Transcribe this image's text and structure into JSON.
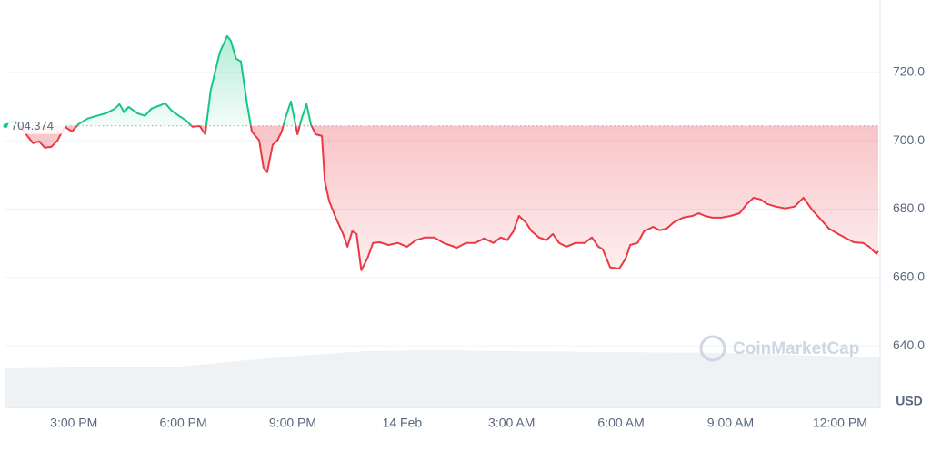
{
  "chart_data": {
    "type": "line",
    "y_label": "USD",
    "watermark": "CoinMarketCap",
    "baseline": 704.374,
    "up_color": "#16c784",
    "down_color": "#ea3943",
    "grid": true,
    "xlim": [
      13.1,
      37.1
    ],
    "ylim": [
      621.8,
      741.2
    ],
    "xticks": [
      {
        "value": 15,
        "label": "3:00 PM"
      },
      {
        "value": 18,
        "label": "6:00 PM"
      },
      {
        "value": 21,
        "label": "9:00 PM"
      },
      {
        "value": 24,
        "label": "14 Feb"
      },
      {
        "value": 27,
        "label": "3:00 AM"
      },
      {
        "value": 30,
        "label": "6:00 AM"
      },
      {
        "value": 33,
        "label": "9:00 AM"
      },
      {
        "value": 36,
        "label": "12:00 PM"
      }
    ],
    "yticks": [
      {
        "value": 640,
        "label": "640.0"
      },
      {
        "value": 660,
        "label": "660.0"
      },
      {
        "value": 680,
        "label": "680.0"
      },
      {
        "value": 700,
        "label": "700.0"
      },
      {
        "value": 720,
        "label": "720.0"
      }
    ],
    "x": [
      13.13,
      13.38,
      13.63,
      13.88,
      14.05,
      14.2,
      14.38,
      14.55,
      14.75,
      14.95,
      15.13,
      15.38,
      15.63,
      15.88,
      16.13,
      16.25,
      16.38,
      16.5,
      16.75,
      16.95,
      17.13,
      17.38,
      17.5,
      17.68,
      17.88,
      18.08,
      18.25,
      18.45,
      18.6,
      18.75,
      19,
      19.2,
      19.3,
      19.45,
      19.58,
      19.75,
      19.88,
      20.08,
      20.2,
      20.3,
      20.45,
      20.58,
      20.7,
      20.8,
      20.95,
      21.13,
      21.25,
      21.38,
      21.5,
      21.63,
      21.8,
      21.88,
      22,
      22.2,
      22.38,
      22.5,
      22.63,
      22.75,
      22.88,
      23.05,
      23.2,
      23.38,
      23.63,
      23.88,
      24.13,
      24.38,
      24.63,
      24.88,
      25.13,
      25.5,
      25.75,
      26,
      26.25,
      26.5,
      26.7,
      26.88,
      27.05,
      27.2,
      27.38,
      27.55,
      27.75,
      27.95,
      28.13,
      28.3,
      28.5,
      28.75,
      29,
      29.2,
      29.38,
      29.5,
      29.7,
      29.95,
      30.13,
      30.25,
      30.45,
      30.63,
      30.88,
      31.05,
      31.25,
      31.45,
      31.7,
      31.95,
      32.13,
      32.3,
      32.5,
      32.75,
      33,
      33.25,
      33.45,
      33.63,
      33.83,
      34,
      34.25,
      34.5,
      34.75,
      35,
      35.25,
      35.5,
      35.7,
      35.95,
      36.13,
      36.38,
      36.63,
      36.8,
      37,
      37.05
    ],
    "values": [
      704.6,
      705.9,
      702.7,
      699.3,
      699.8,
      698.0,
      698.2,
      700.1,
      704.1,
      702.7,
      704.9,
      706.5,
      707.3,
      708.0,
      709.4,
      710.7,
      708.3,
      709.9,
      708.0,
      707.3,
      709.4,
      710.4,
      711.0,
      708.8,
      707.3,
      705.9,
      704.1,
      704.3,
      701.9,
      714.7,
      725.8,
      730.6,
      729.3,
      724.0,
      723.2,
      710.7,
      702.7,
      700.1,
      692.1,
      690.8,
      698.8,
      700.1,
      702.7,
      706.7,
      711.5,
      701.9,
      706.7,
      710.7,
      704.6,
      701.9,
      701.4,
      688.1,
      682.3,
      677.0,
      672.7,
      669.0,
      673.5,
      672.7,
      662.1,
      665.6,
      670.1,
      670.3,
      669.5,
      670.1,
      669.0,
      670.9,
      671.7,
      671.7,
      670.1,
      668.7,
      670.1,
      670.1,
      671.4,
      670.1,
      671.7,
      670.9,
      673.5,
      678.0,
      676.2,
      673.5,
      671.7,
      670.9,
      672.7,
      670.1,
      669.0,
      670.1,
      670.1,
      671.7,
      669.0,
      668.2,
      662.9,
      662.6,
      665.6,
      669.5,
      670.1,
      673.5,
      674.8,
      673.8,
      674.3,
      676.2,
      677.5,
      678.0,
      678.8,
      678.0,
      677.5,
      677.5,
      678.0,
      678.8,
      681.5,
      683.3,
      682.8,
      681.5,
      680.7,
      680.2,
      680.7,
      683.3,
      679.6,
      676.7,
      674.3,
      672.7,
      671.7,
      670.3,
      670.1,
      669.0,
      666.9,
      667.7
    ]
  }
}
